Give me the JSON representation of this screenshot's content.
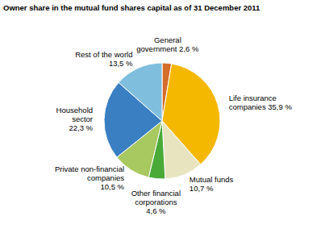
{
  "chart_data": {
    "type": "pie",
    "title": "Owner share in the mutual fund shares capital as of 31 December 2011",
    "categories": [
      "General\ngovernment 2,6 %",
      "Life insurance\ncompanies 35,9 %",
      "Mutual funds\n10,7 %",
      "Other financial\ncorporations\n4,6 %",
      "Private non-financial\ncompanies\n10,5 %",
      "Household\nsector\n22,3 %",
      "Rest of the world\n13,5 %"
    ],
    "values": [
      2.6,
      35.9,
      10.7,
      4.6,
      10.5,
      22.3,
      13.5
    ],
    "colors": [
      "#d46c2a",
      "#f5b800",
      "#e8e4c0",
      "#4aaa38",
      "#a8c860",
      "#3a7fc1",
      "#80bedd"
    ]
  }
}
